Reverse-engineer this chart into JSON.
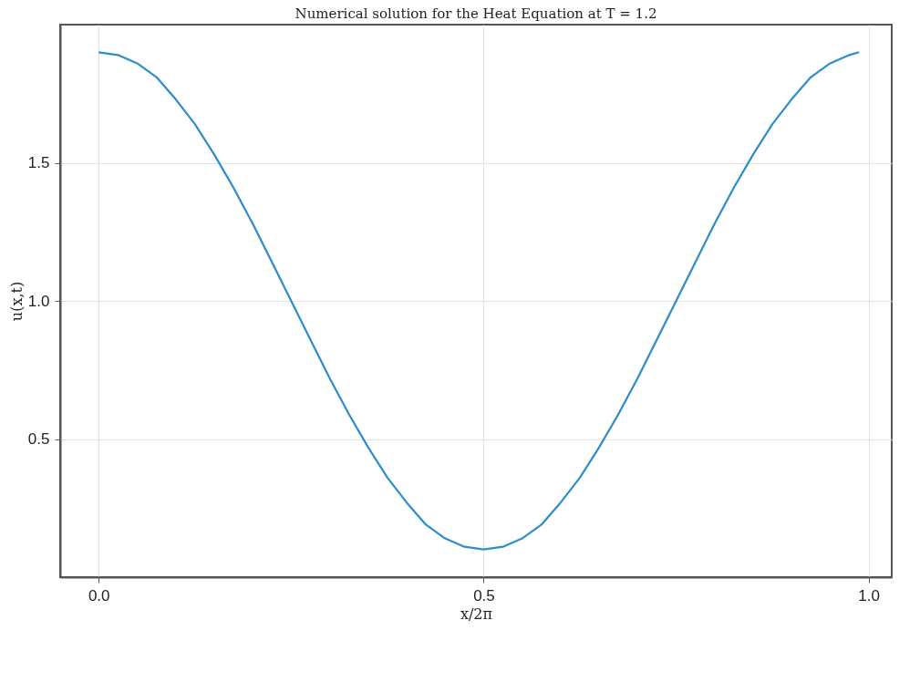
{
  "chart_data": {
    "type": "line",
    "title": "Numerical solution for the Heat Equation at T = 1.2",
    "xlabel": "x/2π",
    "ylabel": "u(x,t)",
    "x": [
      0,
      0.025,
      0.05,
      0.075,
      0.1,
      0.125,
      0.15,
      0.175,
      0.2,
      0.225,
      0.25,
      0.275,
      0.3,
      0.325,
      0.35,
      0.375,
      0.4,
      0.425,
      0.45,
      0.475,
      0.5,
      0.525,
      0.55,
      0.575,
      0.6,
      0.625,
      0.65,
      0.675,
      0.7,
      0.725,
      0.75,
      0.775,
      0.8,
      0.825,
      0.85,
      0.875,
      0.9,
      0.925,
      0.95,
      0.975,
      0.9875
    ],
    "series": [
      {
        "color": "#2c8dc9",
        "values": [
          1.9,
          1.89,
          1.86,
          1.81,
          1.73,
          1.64,
          1.53,
          1.41,
          1.28,
          1.14,
          1.0,
          0.86,
          0.72,
          0.59,
          0.47,
          0.36,
          0.27,
          0.19,
          0.14,
          0.11,
          0.1,
          0.11,
          0.14,
          0.19,
          0.27,
          0.36,
          0.47,
          0.59,
          0.72,
          0.86,
          1.0,
          1.14,
          1.28,
          1.41,
          1.53,
          1.64,
          1.73,
          1.81,
          1.86,
          1.89,
          1.9
        ]
      }
    ],
    "xlim": [
      -0.05,
      1.03
    ],
    "ylim": [
      0.0,
      2.0
    ],
    "xticks": [
      {
        "value": 0,
        "label": "0.0"
      },
      {
        "value": 0.5,
        "label": "0.5"
      },
      {
        "value": 1,
        "label": "1.0"
      }
    ],
    "yticks": [
      {
        "value": 0.5,
        "label": "0.5"
      },
      {
        "value": 1,
        "label": "1.0"
      },
      {
        "value": 1.5,
        "label": "1.5"
      }
    ],
    "grid": true,
    "marker": "none",
    "line_style": "solid"
  }
}
